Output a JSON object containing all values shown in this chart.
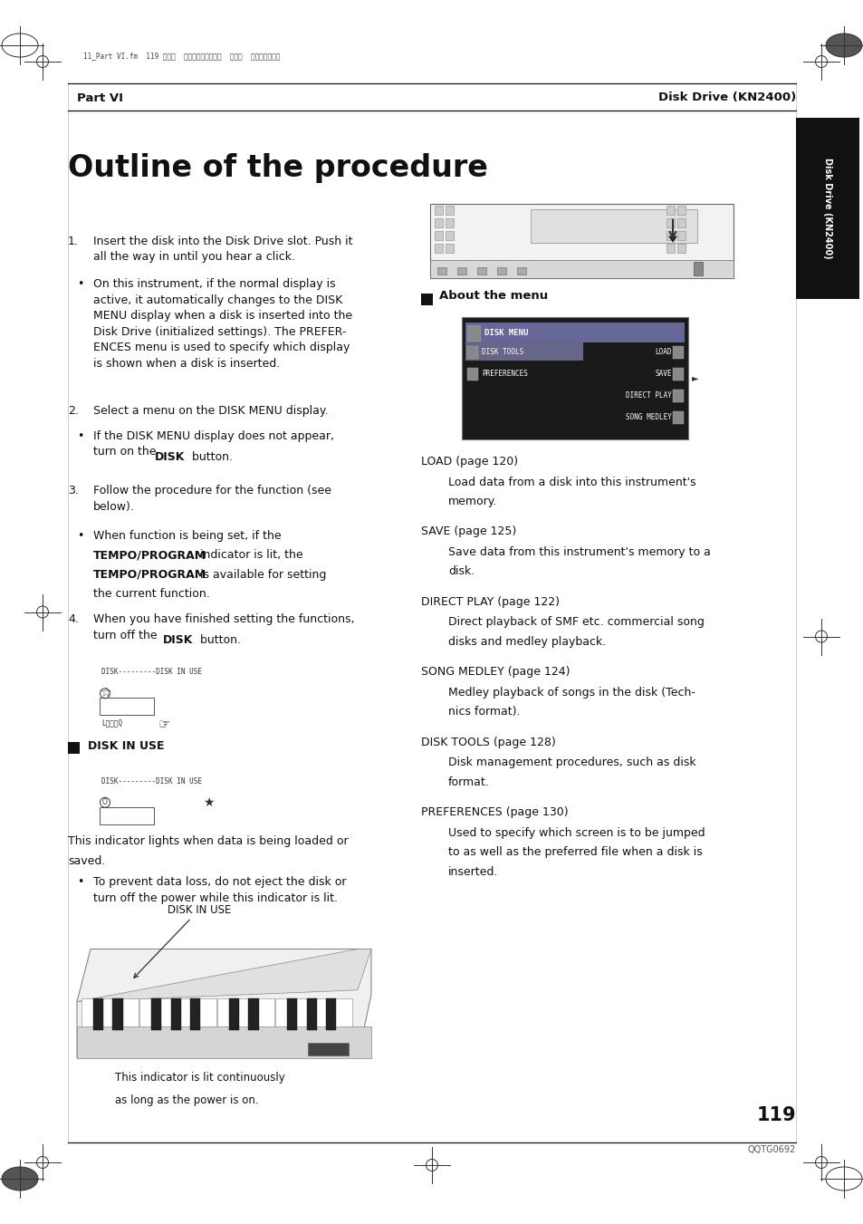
{
  "bg_color": "#ffffff",
  "page_width": 9.54,
  "page_height": 13.51,
  "header_left": "Part VI",
  "header_right": "Disk Drive (KN2400)",
  "title": "Outline of the procedure",
  "tab_text": "Disk Drive (KN2400)",
  "page_number": "119",
  "page_code": "QQTG0692",
  "file_info": "11_Part VI.fm  119 ページ  ２００３年２月５日  水曜日  午後２時４３分",
  "step1_text": "Insert the disk into the Disk Drive slot. Push it\nall the way in until you hear a click.",
  "step1_bullet": "On this instrument, if the normal display is\nactive, it automatically changes to the DISK\nMENU display when a disk is inserted into the\nDisk Drive (initialized settings). The PREFER-\nENCES menu is used to specify which display\nis shown when a disk is inserted.",
  "step2_text": "Select a menu on the DISK MENU display.",
  "step2_bullet": "If the DISK MENU display does not appear,\nturn on the ",
  "step2_bullet_bold": "DISK",
  "step2_bullet_end": " button.",
  "step3_text": "Follow the procedure for the function (see\nbelow).",
  "step3_bullet_pre": "When function is being set, if the\n",
  "step3_bullet_bold1": "TEMPO/PROGRAM",
  "step3_bullet_mid": " indicator is lit, the\n",
  "step3_bullet_bold2": "TEMPO/PROGRAM",
  "step3_bullet_post": " is available for setting\nthe current function.",
  "step4_text": "When you have finished setting the functions,\nturn off the ",
  "step4_text_bold": "DISK",
  "step4_text_end": " button.",
  "disk_in_use_label": "DISK IN USE",
  "disk_in_use_cap1": "This indicator lights when data is being loaded or",
  "disk_in_use_cap2": "saved.",
  "disk_in_use_bullet": "To prevent data loss, do not eject the disk or\nturn off the power while this indicator is lit.",
  "disk_in_use_arrow": "DISK IN USE",
  "disk_in_use_cap3": "This indicator is lit continuously",
  "disk_in_use_cap4": "as long as the power is on.",
  "about_menu": "About the menu",
  "menu_items": [
    {
      "name": "LOAD (page 120)",
      "desc": "Load data from a disk into this instrument's\nmemory."
    },
    {
      "name": "SAVE (page 125)",
      "desc": "Save data from this instrument's memory to a\ndisk."
    },
    {
      "name": "DIRECT PLAY (page 122)",
      "desc": "Direct playback of SMF etc. commercial song\ndisks and medley playback."
    },
    {
      "name": "SONG MEDLEY (page 124)",
      "desc": "Medley playback of songs in the disk (Tech-\nnics format)."
    },
    {
      "name": "DISK TOOLS (page 128)",
      "desc": "Disk management procedures, such as disk\nformat."
    },
    {
      "name": "PREFERENCES (page 130)",
      "desc": "Used to specify which screen is to be jumped\nto as well as the preferred file when a disk is\ninserted."
    }
  ]
}
